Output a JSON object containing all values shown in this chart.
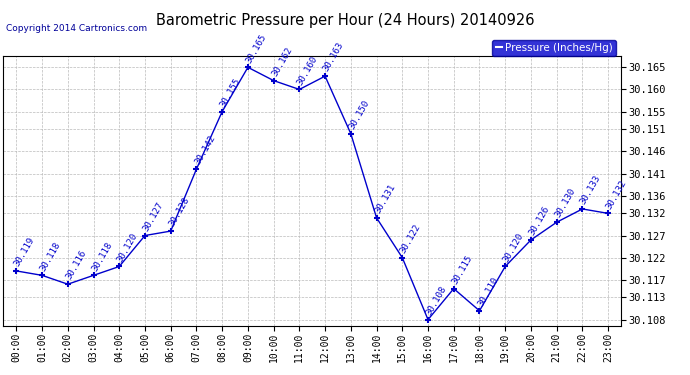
{
  "title": "Barometric Pressure per Hour (24 Hours) 20140926",
  "ylabel": "Pressure (Inches/Hg)",
  "copyright": "Copyright 2014 Cartronics.com",
  "hours": [
    0,
    1,
    2,
    3,
    4,
    5,
    6,
    7,
    8,
    9,
    10,
    11,
    12,
    13,
    14,
    15,
    16,
    17,
    18,
    19,
    20,
    21,
    22,
    23
  ],
  "hour_labels": [
    "00:00",
    "01:00",
    "02:00",
    "03:00",
    "04:00",
    "05:00",
    "06:00",
    "07:00",
    "08:00",
    "09:00",
    "10:00",
    "11:00",
    "12:00",
    "13:00",
    "14:00",
    "15:00",
    "16:00",
    "17:00",
    "18:00",
    "19:00",
    "20:00",
    "21:00",
    "22:00",
    "23:00"
  ],
  "values": [
    30.119,
    30.118,
    30.116,
    30.118,
    30.12,
    30.127,
    30.128,
    30.142,
    30.155,
    30.165,
    30.162,
    30.16,
    30.163,
    30.15,
    30.131,
    30.122,
    30.108,
    30.115,
    30.11,
    30.12,
    30.126,
    30.13,
    30.133,
    30.132
  ],
  "line_color": "#0000CC",
  "marker_color": "#0000CC",
  "bg_color": "#ffffff",
  "grid_color": "#bbbbbb",
  "ylim_min": 30.1065,
  "ylim_max": 30.1675,
  "ytick_values": [
    30.108,
    30.113,
    30.117,
    30.122,
    30.127,
    30.132,
    30.136,
    30.141,
    30.146,
    30.151,
    30.155,
    30.16,
    30.165
  ],
  "title_color": "#000000",
  "label_color": "#0000CC",
  "legend_color": "#0000CC",
  "legend_bg": "#0000CC",
  "legend_text_color": "#ffffff"
}
